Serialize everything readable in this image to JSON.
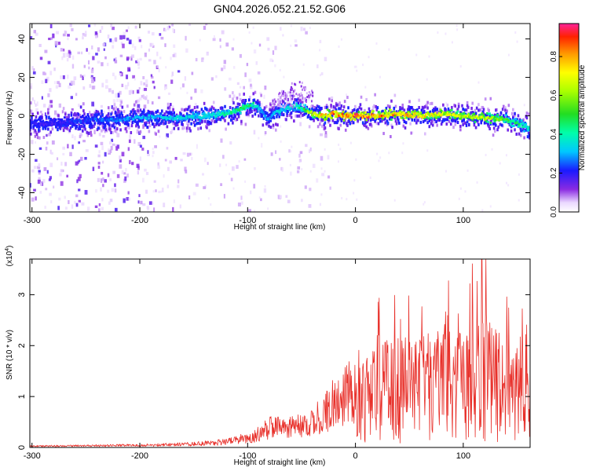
{
  "title": "GN04.2026.052.21.52.G06",
  "chart_data": [
    {
      "type": "heatmap",
      "xlabel": "Height of straight line (km)",
      "ylabel": "Frequency (Hz)",
      "xlim": [
        -302,
        162
      ],
      "ylim": [
        -50,
        48
      ],
      "xticks": [
        "-300",
        "-200",
        "-100",
        "0",
        "100"
      ],
      "yticks": [
        "-40",
        "-20",
        "0",
        "20",
        "40"
      ],
      "colorbar": {
        "label": "Normalized spectral amplitude",
        "ticks": [
          "0.0",
          "0.2",
          "0.4",
          "0.6",
          "0.8"
        ],
        "range": [
          0,
          0.97
        ]
      },
      "ridge": {
        "x": [
          -302,
          -280,
          -260,
          -240,
          -220,
          -200,
          -180,
          -160,
          -140,
          -120,
          -105,
          -95,
          -88,
          -82,
          -75,
          -65,
          -55,
          -45,
          -40,
          -30,
          -20,
          -10,
          0,
          20,
          40,
          60,
          80,
          100,
          120,
          140,
          160
        ],
        "y": [
          -4,
          -4,
          -3,
          -2,
          -2,
          -1,
          -1,
          -1,
          0,
          1,
          4,
          6,
          3,
          -2,
          1,
          4,
          5,
          3,
          1,
          0,
          1,
          0,
          0,
          0,
          1,
          0,
          1,
          0,
          -1,
          -2,
          -6
        ],
        "amplitude": [
          0.22,
          0.22,
          0.24,
          0.28,
          0.3,
          0.33,
          0.35,
          0.38,
          0.4,
          0.45,
          0.5,
          0.45,
          0.35,
          0.3,
          0.35,
          0.4,
          0.42,
          0.6,
          0.7,
          0.85,
          0.9,
          0.88,
          0.95,
          0.9,
          0.85,
          0.8,
          0.75,
          0.72,
          0.7,
          0.55,
          0.42
        ]
      }
    },
    {
      "type": "line",
      "xlabel": "Height of straight line (km)",
      "ylabel": "SNR (10 * v/v)",
      "multiplier": "(x10^4)",
      "xlim": [
        -302,
        162
      ],
      "ylim": [
        0,
        3.7
      ],
      "xticks": [
        "-300",
        "-200",
        "-100",
        "0",
        "100"
      ],
      "yticks": [
        "0",
        "1",
        "2",
        "3"
      ],
      "color": "#e8302a",
      "envelope": {
        "x": [
          -302,
          -250,
          -200,
          -150,
          -125,
          -100,
          -90,
          -80,
          -70,
          -50,
          -40,
          -30,
          -20,
          -10,
          0,
          20,
          40,
          60,
          80,
          100,
          120,
          140,
          162
        ],
        "y": [
          0.03,
          0.04,
          0.05,
          0.08,
          0.12,
          0.22,
          0.32,
          0.45,
          0.45,
          0.5,
          0.55,
          0.8,
          1.0,
          1.2,
          1.3,
          1.5,
          1.6,
          1.7,
          1.7,
          1.8,
          1.9,
          1.6,
          1.3
        ]
      },
      "peak": {
        "x": 117,
        "y": 3.7
      }
    }
  ]
}
